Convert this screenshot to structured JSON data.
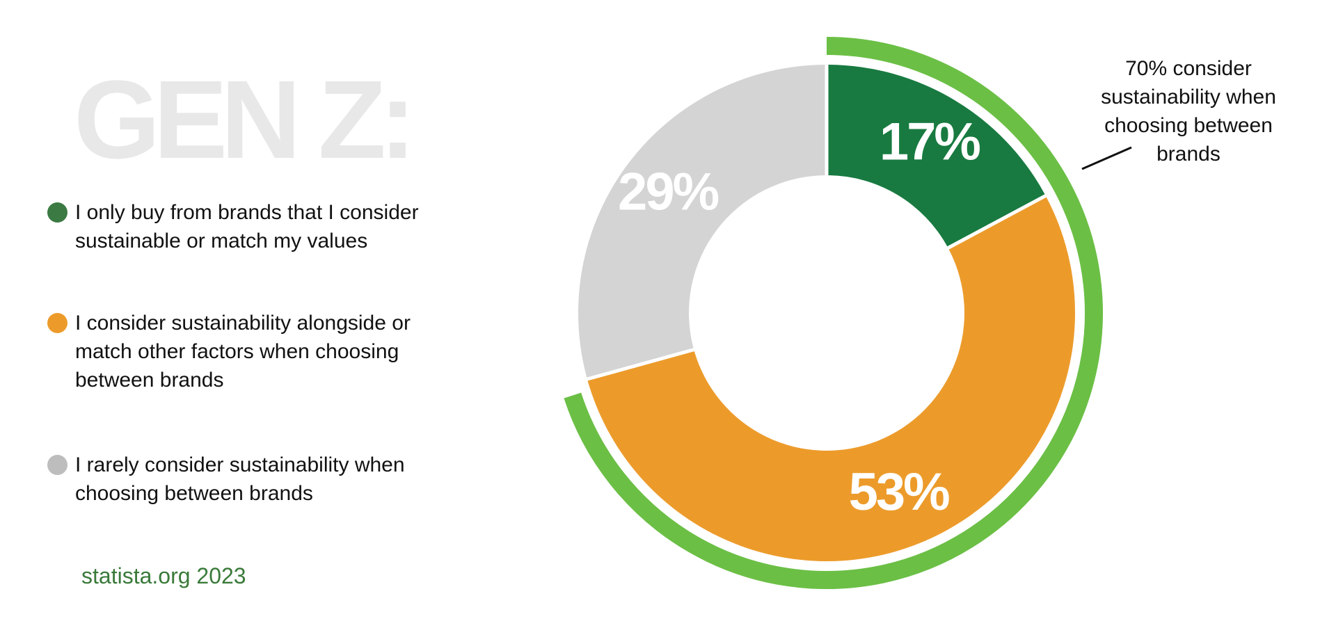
{
  "header": {
    "title": "GEN Z:"
  },
  "legend": {
    "items": [
      {
        "label": "I only buy from brands that I consider\nsustainable or match my values",
        "color": "#3b7a43"
      },
      {
        "label": "I consider sustainability alongside or\nmatch other factors when choosing\nbetween brands",
        "color": "#ec9b2b"
      },
      {
        "label": "I  rarely consider sustainability when\nchoosing between brands",
        "color": "#bdbdbd"
      }
    ]
  },
  "source": "statista.org 2023",
  "annotation": {
    "text": "70% consider\nsustainability when\nchoosing between\nbrands"
  },
  "chart_data": {
    "type": "pie",
    "variant": "donut",
    "start": "12 o'clock",
    "direction": "clockwise",
    "slices": [
      {
        "label": "I only buy from brands that I consider sustainable or match my values",
        "value": 17,
        "display": "17%",
        "color": "#187a40"
      },
      {
        "label": "I consider sustainability alongside or match other factors when choosing between brands",
        "value": 53,
        "display": "53%",
        "color": "#ec9b2b"
      },
      {
        "label": "I rarely consider sustainability when choosing between brands",
        "value": 29,
        "display": "29%",
        "color": "#d4d4d4"
      }
    ],
    "outer_arc": {
      "value": 70,
      "display": "70%",
      "color": "#6bbf45"
    }
  }
}
